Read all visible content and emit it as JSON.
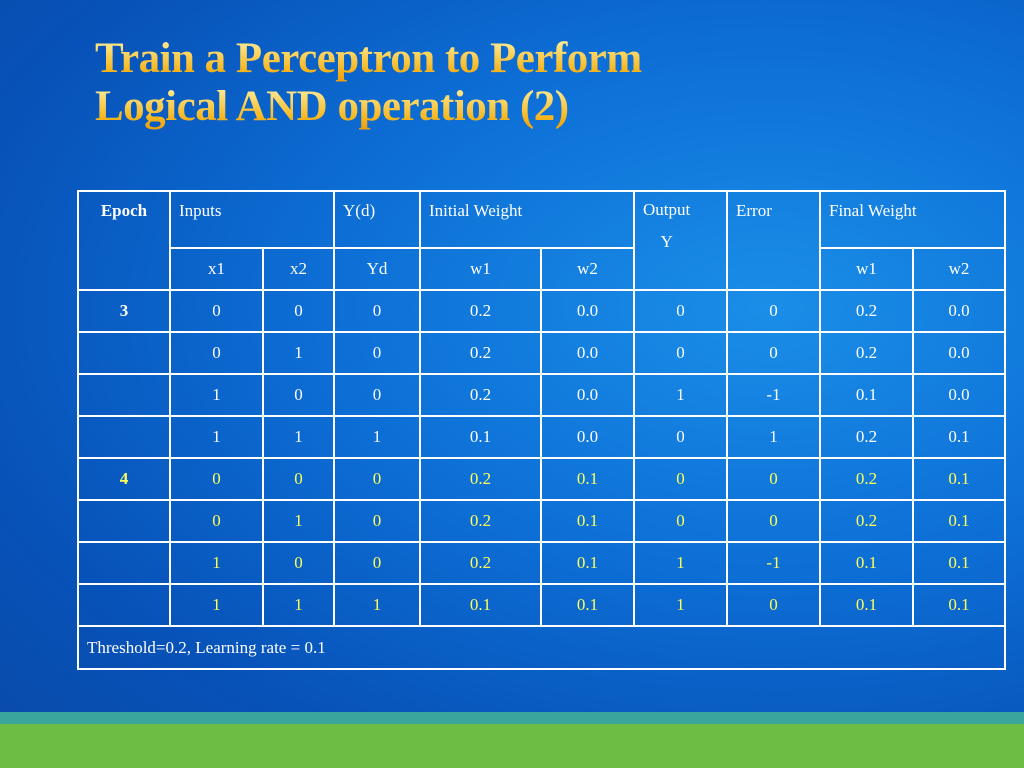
{
  "title": [
    "Train a Perceptron to Perform",
    "Logical AND operation (2)"
  ],
  "table": {
    "header": [
      "Epoch",
      "Inputs",
      "Y(d)",
      "Initial Weight",
      "Output Y",
      "Error",
      "Final Weight"
    ],
    "subheader": [
      "x1",
      "x2",
      "Yd",
      "w1",
      "w2",
      "w1",
      "w2"
    ],
    "rows": [
      {
        "epoch": "3",
        "cells": [
          "0",
          "0",
          "0",
          "0.2",
          "0.0",
          "0",
          "0",
          "0.2",
          "0.0"
        ]
      },
      {
        "cells": [
          "0",
          "1",
          "0",
          "0.2",
          "0.0",
          "0",
          "0",
          "0.2",
          "0.0"
        ]
      },
      {
        "cells": [
          "1",
          "0",
          "0",
          "0.2",
          "0.0",
          "1",
          "-1",
          "0.1",
          "0.0"
        ]
      },
      {
        "cells": [
          "1",
          "1",
          "1",
          "0.1",
          "0.0",
          "0",
          "1",
          "0.2",
          "0.1"
        ]
      },
      {
        "epoch": "4",
        "highlight": true,
        "cells": [
          "0",
          "0",
          "0",
          "0.2",
          "0.1",
          "0",
          "0",
          "0.2",
          "0.1"
        ]
      },
      {
        "highlight": true,
        "cells": [
          "0",
          "1",
          "0",
          "0.2",
          "0.1",
          "0",
          "0",
          "0.2",
          "0.1"
        ]
      },
      {
        "highlight": true,
        "cells": [
          "1",
          "0",
          "0",
          "0.2",
          "0.1",
          "1",
          "-1",
          "0.1",
          "0.1"
        ]
      },
      {
        "highlight": true,
        "cells": [
          "1",
          "1",
          "1",
          "0.1",
          "0.1",
          "1",
          "0",
          "0.1",
          "0.1"
        ]
      }
    ],
    "note": "Threshold=0.2, Learning rate = 0.1"
  }
}
